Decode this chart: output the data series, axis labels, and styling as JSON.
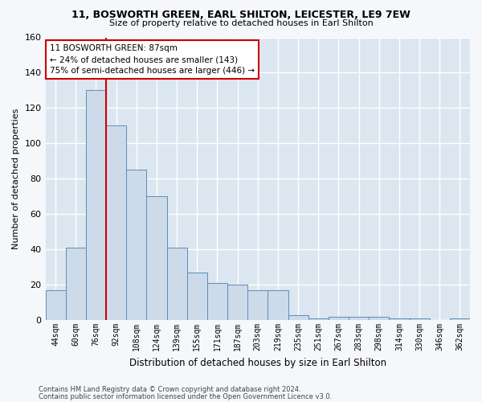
{
  "title_line1": "11, BOSWORTH GREEN, EARL SHILTON, LEICESTER, LE9 7EW",
  "title_line2": "Size of property relative to detached houses in Earl Shilton",
  "xlabel": "Distribution of detached houses by size in Earl Shilton",
  "ylabel": "Number of detached properties",
  "categories": [
    "44sqm",
    "60sqm",
    "76sqm",
    "92sqm",
    "108sqm",
    "124sqm",
    "139sqm",
    "155sqm",
    "171sqm",
    "187sqm",
    "203sqm",
    "219sqm",
    "235sqm",
    "251sqm",
    "267sqm",
    "283sqm",
    "298sqm",
    "314sqm",
    "330sqm",
    "346sqm",
    "362sqm"
  ],
  "bar_heights": [
    17,
    41,
    130,
    110,
    85,
    70,
    41,
    27,
    21,
    20,
    17,
    17,
    3,
    1,
    2,
    2,
    2,
    1,
    1,
    0,
    1
  ],
  "bar_color": "#cddaea",
  "bar_edge_color": "#5b8db8",
  "background_color": "#dce6f0",
  "grid_color": "#ffffff",
  "red_line_x": 2.5,
  "annotation_text": "11 BOSWORTH GREEN: 87sqm\n← 24% of detached houses are smaller (143)\n75% of semi-detached houses are larger (446) →",
  "annotation_box_color": "#ffffff",
  "annotation_box_edge": "#cc0000",
  "red_line_color": "#cc0000",
  "ylim": [
    0,
    160
  ],
  "yticks": [
    0,
    20,
    40,
    60,
    80,
    100,
    120,
    140,
    160
  ],
  "footer_line1": "Contains HM Land Registry data © Crown copyright and database right 2024.",
  "footer_line2": "Contains public sector information licensed under the Open Government Licence v3.0."
}
